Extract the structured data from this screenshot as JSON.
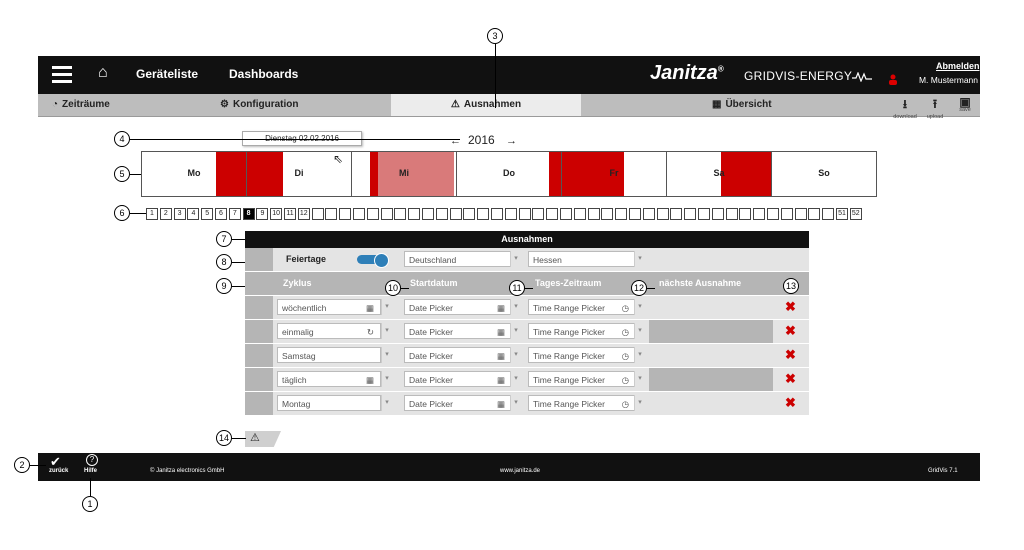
{
  "header": {
    "nav": [
      "Geräteliste",
      "Dashboards"
    ],
    "logo": "Janitza",
    "product": "GRIDVIS-ENERGY",
    "logout": "Abmelden",
    "user": "M. Mustermann"
  },
  "tabs": [
    {
      "label": "Zeiträume",
      "icon": "clock-icon"
    },
    {
      "label": "Konfiguration",
      "icon": "gears-icon"
    },
    {
      "label": "Ausnahmen",
      "icon": "warning-gear-icon"
    },
    {
      "label": "Übersicht",
      "icon": "calendar-icon"
    }
  ],
  "toolbar": {
    "download": "download",
    "upload": "upload",
    "save": "save"
  },
  "calendar": {
    "tooltip": "Dienstag 02.02.2016",
    "year": "2016",
    "days": [
      "Mo",
      "Di",
      "Mi",
      "Do",
      "Fr",
      "Sa",
      "So"
    ],
    "weeks_visible": [
      "1",
      "2",
      "3",
      "4",
      "5",
      "6",
      "7",
      "8",
      "9",
      "10",
      "11",
      "12",
      "51",
      "52"
    ],
    "selected_week": "8"
  },
  "table": {
    "title": "Ausnahmen",
    "holidays_label": "Feiertage",
    "country": "Deutschland",
    "state": "Hessen",
    "headers": {
      "cycle": "Zyklus",
      "start": "Startdatum",
      "timerange": "Tages-Zeitraum",
      "next": "nächste Ausnahme"
    },
    "rows": [
      {
        "cycle": "wöchentlich",
        "date": "Date Picker",
        "time": "Time Range Picker"
      },
      {
        "cycle": "einmalig",
        "date": "Date Picker",
        "time": "Time Range Picker"
      },
      {
        "cycle": "Samstag",
        "date": "Date Picker",
        "time": "Time Range Picker"
      },
      {
        "cycle": "täglich",
        "date": "Date Picker",
        "time": "Time Range Picker"
      },
      {
        "cycle": "Montag",
        "date": "Date Picker",
        "time": "Time Range Picker"
      }
    ]
  },
  "footer": {
    "back": "zurück",
    "help": "Hilfe",
    "copyright": "© Janitza electronics GmbH",
    "url": "www.janitza.de",
    "version": "GridVis 7.1"
  },
  "callouts": [
    "1",
    "2",
    "3",
    "4",
    "5",
    "6",
    "7",
    "8",
    "9",
    "10",
    "11",
    "12",
    "13",
    "14"
  ],
  "colors": {
    "accent_red": "#cc0000",
    "toggle_blue": "#2e7fb8",
    "dark": "#111111"
  }
}
